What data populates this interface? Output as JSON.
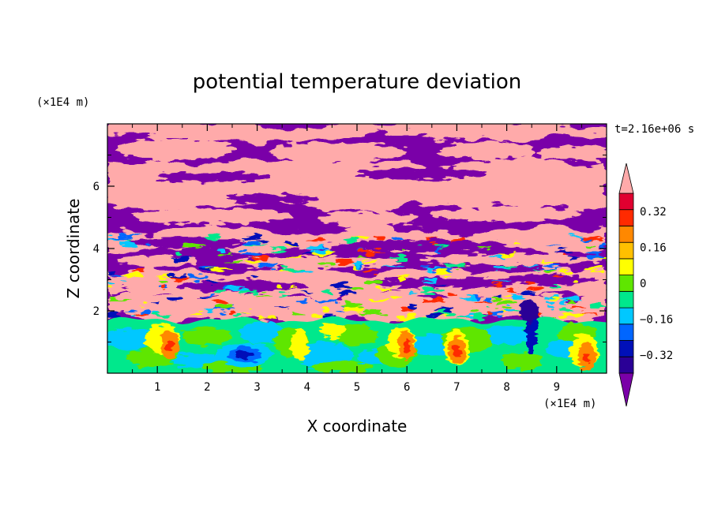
{
  "chart_data": {
    "type": "heatmap",
    "title": "potential temperature deviation",
    "xlabel": "X coordinate",
    "ylabel": "Z coordinate",
    "x_unit": "(×1E4 m)",
    "y_unit": "(×1E4 m)",
    "time_label": "t=2.16e+06 s",
    "xlim": [
      0,
      10
    ],
    "ylim": [
      0,
      8
    ],
    "x_ticks": [
      "1",
      "2",
      "3",
      "4",
      "5",
      "6",
      "7",
      "8",
      "9"
    ],
    "y_ticks": [
      "2",
      "4",
      "6"
    ],
    "colorbar": {
      "levels": [
        -0.48,
        -0.4,
        -0.32,
        -0.24,
        -0.16,
        -0.08,
        0,
        0.08,
        0.16,
        0.24,
        0.32,
        0.4,
        0.48
      ],
      "colors": [
        "#7a00a8",
        "#2a0096",
        "#0010b8",
        "#0066ff",
        "#00c8ff",
        "#00e88c",
        "#5fe600",
        "#ffff00",
        "#ffc000",
        "#ff8800",
        "#ff2a00",
        "#e00030",
        "#ffaaaa"
      ],
      "labels": [
        "0.32",
        "0.16",
        "0",
        "−0.16",
        "−0.32"
      ],
      "label_values": [
        0.32,
        0.16,
        0,
        -0.16,
        -0.32
      ]
    },
    "fields": {
      "upper_layers": [
        {
          "z_range": [
            7.5,
            8.0
          ],
          "dominant": "pink"
        },
        {
          "z_range": [
            6.8,
            7.5
          ],
          "dominant": "purple"
        },
        {
          "z_range": [
            5.3,
            6.8
          ],
          "dominant": "pink"
        },
        {
          "z_range": [
            4.6,
            5.3
          ],
          "dominant": "purple"
        },
        {
          "z_range": [
            3.9,
            4.6
          ],
          "dominant": "pink"
        },
        {
          "z_range": [
            3.3,
            3.9
          ],
          "dominant": "purple"
        },
        {
          "z_range": [
            2.5,
            3.3
          ],
          "dominant": "pink"
        },
        {
          "z_range": [
            1.7,
            2.5
          ],
          "dominant": "mixed"
        }
      ],
      "boundary_layer_top": 1.7,
      "features": [
        {
          "x": 2.75,
          "z": 0.6,
          "value": -0.36,
          "kind": "cold eddy"
        },
        {
          "x": 1.25,
          "z": 0.9,
          "value": 0.3,
          "kind": "warm plume"
        },
        {
          "x": 6.0,
          "z": 0.9,
          "value": 0.22,
          "kind": "warm plume"
        },
        {
          "x": 7.0,
          "z": 0.7,
          "value": 0.18,
          "kind": "warm plume"
        },
        {
          "x": 8.5,
          "z": 1.0,
          "value": -0.3,
          "kind": "cold downdraft"
        },
        {
          "x": 9.6,
          "z": 0.5,
          "value": 0.34,
          "kind": "warm plume"
        }
      ]
    }
  }
}
